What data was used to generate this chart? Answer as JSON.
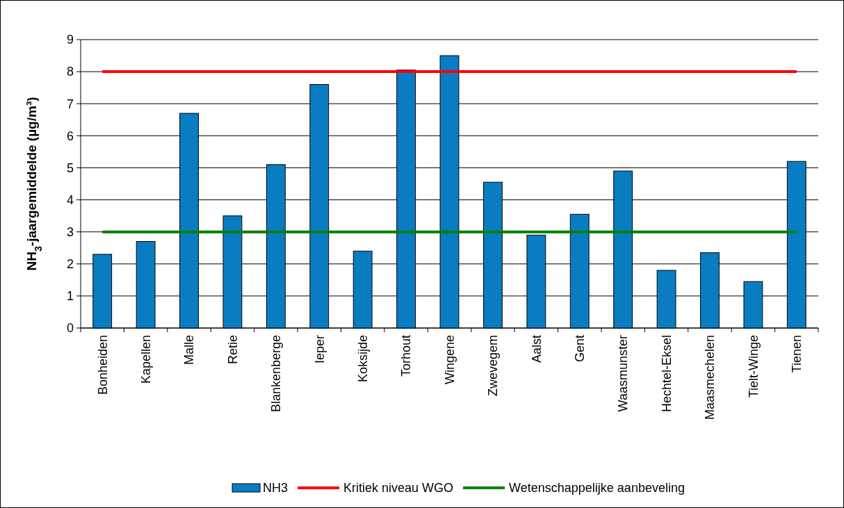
{
  "chart_data": {
    "type": "bar",
    "ylabel": "NH$_{3}$-jaargemiddelde (µg/m³)",
    "categories": [
      "Bonheiden",
      "Kapellen",
      "Malle",
      "Retie",
      "Blankenberge",
      "Ieper",
      "Koksijde",
      "Torhout",
      "Wingene",
      "Zwevegem",
      "Aalst",
      "Gent",
      "Waasmunster",
      "Hechtel-Eksel",
      "Maasmechelen",
      "Tielt-Winge",
      "Tienen"
    ],
    "series": [
      {
        "name": "NH3",
        "color": "#0a7dc2",
        "values": [
          2.3,
          2.7,
          6.7,
          3.5,
          5.1,
          7.6,
          2.4,
          8.05,
          8.5,
          4.55,
          2.9,
          3.55,
          4.9,
          1.8,
          2.35,
          1.45,
          5.2
        ]
      },
      {
        "name": "Kritiek niveau WGO",
        "type": "line",
        "color": "#ff0000",
        "values": [
          8,
          8,
          8,
          8,
          8,
          8,
          8,
          8,
          8,
          8,
          8,
          8,
          8,
          8,
          8,
          8,
          8
        ]
      },
      {
        "name": "Wetenschappelijke aanbeveling",
        "type": "line",
        "color": "#008000",
        "values": [
          3,
          3,
          3,
          3,
          3,
          3,
          3,
          3,
          3,
          3,
          3,
          3,
          3,
          3,
          3,
          3,
          3
        ]
      }
    ],
    "ylim": [
      0,
      9
    ],
    "yticks": [
      0,
      1,
      2,
      3,
      4,
      5,
      6,
      7,
      8,
      9
    ],
    "grid": "y",
    "legend": "bottom"
  }
}
